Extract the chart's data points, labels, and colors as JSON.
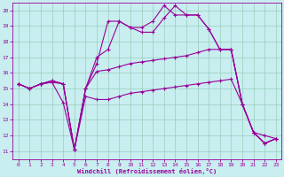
{
  "xlabel": "Windchill (Refroidissement éolien,°C)",
  "bg_color": "#c8eef0",
  "line_color": "#990099",
  "grid_color": "#99ccbb",
  "ylim": [
    10.5,
    20.5
  ],
  "xlim": [
    -0.5,
    23.5
  ],
  "yticks": [
    11,
    12,
    13,
    14,
    15,
    16,
    17,
    18,
    19,
    20
  ],
  "xticks": [
    0,
    1,
    2,
    3,
    4,
    5,
    6,
    7,
    8,
    9,
    10,
    11,
    12,
    13,
    14,
    15,
    16,
    17,
    18,
    19,
    20,
    21,
    22,
    23
  ],
  "lines": [
    {
      "x": [
        0,
        1,
        2,
        3,
        4,
        5,
        6,
        7,
        8,
        9,
        10,
        11,
        12,
        13,
        14,
        15,
        16,
        17,
        18,
        19,
        20,
        21,
        22,
        23
      ],
      "y": [
        15.3,
        15.0,
        15.3,
        15.4,
        15.3,
        11.1,
        15.0,
        16.6,
        19.3,
        19.3,
        18.9,
        18.6,
        18.6,
        19.5,
        20.3,
        19.7,
        19.7,
        18.8,
        17.5,
        17.5,
        14.0,
        12.2,
        11.5,
        11.8
      ]
    },
    {
      "x": [
        0,
        1,
        2,
        3,
        4,
        5,
        6,
        7,
        8,
        9,
        10,
        11,
        12,
        13,
        14,
        15,
        16,
        17,
        18,
        19,
        20,
        21,
        22,
        23
      ],
      "y": [
        15.3,
        15.0,
        15.3,
        15.5,
        15.3,
        11.1,
        15.0,
        17.0,
        17.5,
        19.3,
        18.9,
        18.9,
        19.3,
        20.3,
        19.7,
        19.7,
        19.7,
        18.8,
        17.5,
        17.5,
        14.0,
        12.2,
        11.5,
        11.8
      ]
    },
    {
      "x": [
        0,
        1,
        2,
        3,
        4,
        5,
        6,
        7,
        8,
        9,
        10,
        11,
        12,
        13,
        14,
        15,
        16,
        17,
        18,
        19,
        20,
        21,
        22,
        23
      ],
      "y": [
        15.3,
        15.0,
        15.3,
        15.5,
        15.3,
        11.1,
        15.0,
        16.1,
        16.2,
        16.4,
        16.6,
        16.7,
        16.8,
        16.9,
        17.0,
        17.1,
        17.3,
        17.5,
        17.5,
        17.5,
        14.0,
        12.2,
        11.5,
        11.8
      ]
    },
    {
      "x": [
        0,
        1,
        2,
        3,
        4,
        5,
        6,
        7,
        8,
        9,
        10,
        11,
        12,
        13,
        14,
        15,
        16,
        17,
        18,
        19,
        20,
        21,
        22,
        23
      ],
      "y": [
        15.3,
        15.0,
        15.3,
        15.4,
        14.1,
        11.1,
        14.5,
        14.3,
        14.3,
        14.5,
        14.7,
        14.8,
        14.9,
        15.0,
        15.1,
        15.2,
        15.3,
        15.4,
        15.5,
        15.6,
        14.0,
        12.2,
        12.0,
        11.8
      ]
    }
  ]
}
